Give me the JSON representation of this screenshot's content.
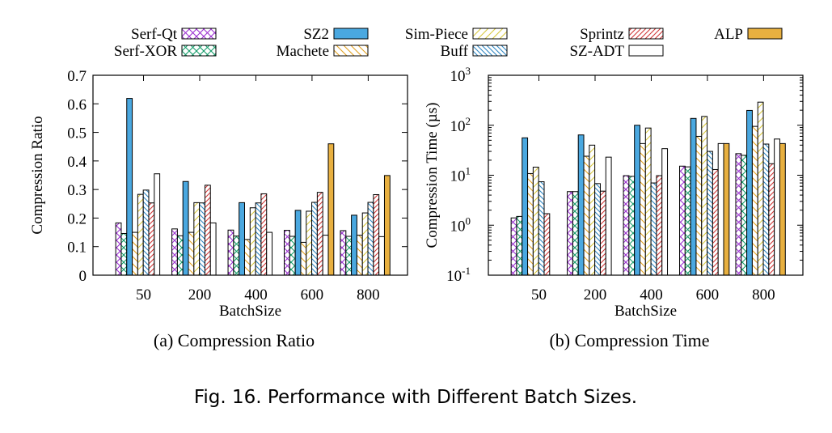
{
  "figure": {
    "caption": "Fig. 16.  Performance with Different Batch Sizes."
  },
  "legend": {
    "items": [
      {
        "name": "Serf-Qt",
        "color": "#9b30d0",
        "pattern": "cross"
      },
      {
        "name": "Serf-XOR",
        "color": "#169c6a",
        "pattern": "cross"
      },
      {
        "name": "SZ2",
        "color": "#4aa8e0",
        "pattern": "solid"
      },
      {
        "name": "Machete",
        "color": "#e0a020",
        "pattern": "diag-back"
      },
      {
        "name": "Sim-Piece",
        "color": "#d8c840",
        "pattern": "diag-fwd"
      },
      {
        "name": "Buff",
        "color": "#2e86c1",
        "pattern": "diag-back-dense"
      },
      {
        "name": "Sprintz",
        "color": "#d03838",
        "pattern": "diag-fwd-dense"
      },
      {
        "name": "SZ-ADT",
        "color": "#ffffff",
        "pattern": "empty"
      },
      {
        "name": "ALP",
        "color": "#e8b040",
        "pattern": "solid"
      }
    ]
  },
  "chart_data": [
    {
      "type": "bar",
      "subtitle": "(a) Compression Ratio",
      "xlabel": "BatchSize",
      "ylabel": "Compression Ratio",
      "categories": [
        "50",
        "200",
        "400",
        "600",
        "800"
      ],
      "ylim": [
        0,
        0.7
      ],
      "yticks": [
        "0",
        "0.1",
        "0.2",
        "0.3",
        "0.4",
        "0.5",
        "0.6",
        "0.7"
      ],
      "ytick_values": [
        0,
        0.1,
        0.2,
        0.3,
        0.4,
        0.5,
        0.6,
        0.7
      ],
      "grid": false,
      "series": [
        {
          "name": "Serf-Qt",
          "values": [
            0.183,
            0.162,
            0.158,
            0.157,
            0.156
          ]
        },
        {
          "name": "Serf-XOR",
          "values": [
            0.146,
            0.138,
            0.137,
            0.136,
            0.136
          ]
        },
        {
          "name": "SZ2",
          "values": [
            0.619,
            0.328,
            0.254,
            0.227,
            0.21
          ]
        },
        {
          "name": "Machete",
          "values": [
            0.15,
            0.15,
            0.125,
            0.115,
            0.14
          ]
        },
        {
          "name": "Sim-Piece",
          "values": [
            0.283,
            0.254,
            0.236,
            0.224,
            0.218
          ]
        },
        {
          "name": "Buff",
          "values": [
            0.298,
            0.253,
            0.253,
            0.255,
            0.255
          ]
        },
        {
          "name": "Sprintz",
          "values": [
            0.253,
            0.315,
            0.285,
            0.29,
            0.282
          ]
        },
        {
          "name": "SZ-ADT",
          "values": [
            0.355,
            0.183,
            0.15,
            0.14,
            0.135
          ]
        },
        {
          "name": "ALP",
          "values": [
            null,
            null,
            null,
            0.46,
            0.349
          ]
        }
      ]
    },
    {
      "type": "bar",
      "subtitle": "(b) Compression Time",
      "xlabel": "BatchSize",
      "ylabel": "Compression Time (µs)",
      "categories": [
        "50",
        "200",
        "400",
        "600",
        "800"
      ],
      "yscale": "log",
      "ylim": [
        0.1,
        1000
      ],
      "ytick_values": [
        0.1,
        1,
        10,
        100,
        1000
      ],
      "ytick_exponents": [
        "-1",
        "0",
        "1",
        "2",
        "3"
      ],
      "ytick_base": "10",
      "grid": false,
      "series": [
        {
          "name": "Serf-Qt",
          "values": [
            1.4,
            4.7,
            9.8,
            15.2,
            27
          ]
        },
        {
          "name": "Serf-XOR",
          "values": [
            1.5,
            4.7,
            9.5,
            14.7,
            25
          ]
        },
        {
          "name": "SZ2",
          "values": [
            56,
            64,
            100,
            137,
            198
          ]
        },
        {
          "name": "Machete",
          "values": [
            10.8,
            24,
            43,
            60,
            95
          ]
        },
        {
          "name": "Sim-Piece",
          "values": [
            14.5,
            40,
            88,
            150,
            290
          ]
        },
        {
          "name": "Buff",
          "values": [
            7.4,
            6.8,
            7.0,
            30,
            42
          ]
        },
        {
          "name": "Sprintz",
          "values": [
            1.7,
            4.8,
            9.8,
            13,
            17
          ]
        },
        {
          "name": "SZ-ADT",
          "values": [
            null,
            23,
            34,
            43,
            53
          ]
        },
        {
          "name": "ALP",
          "values": [
            null,
            null,
            null,
            43,
            43
          ]
        }
      ]
    }
  ]
}
